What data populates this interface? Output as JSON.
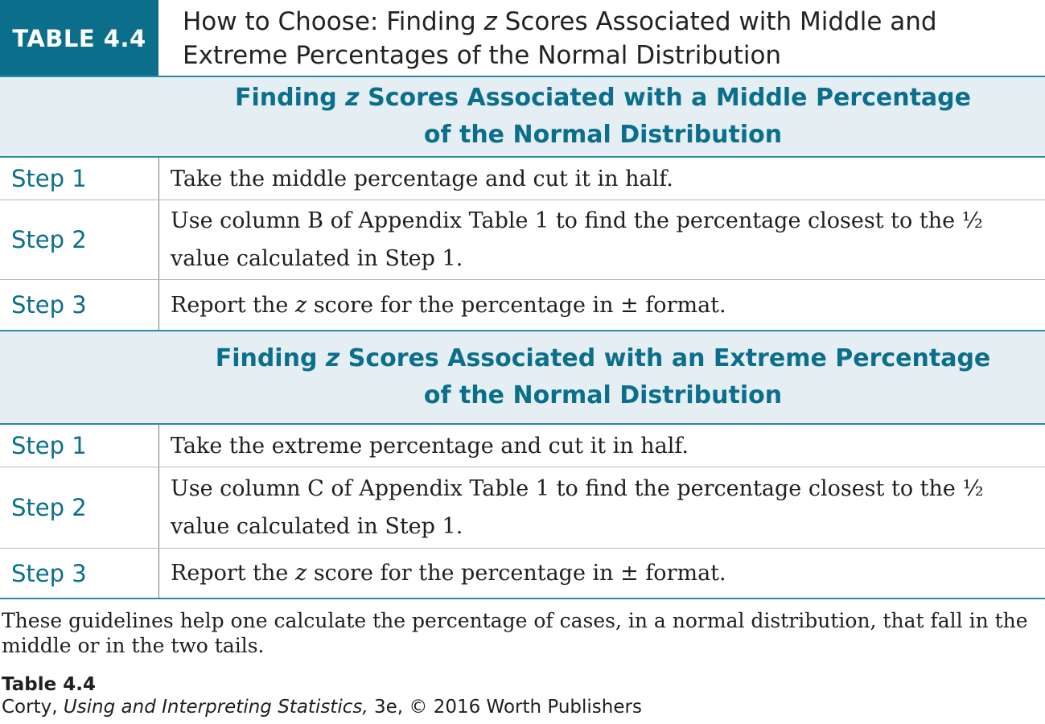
{
  "table": {
    "badge": "TABLE 4.4",
    "title_prefix": "How to Choose: Finding ",
    "title_z": "z",
    "title_suffix_line1": " Scores Associated with Middle and",
    "title_line2": "Extreme Percentages of the Normal Distribution",
    "sections": [
      {
        "heading_prefix": "Finding ",
        "heading_z": "z",
        "heading_suffix": " Scores Associated with a Middle Percentage",
        "heading_line2": "of the Normal Distribution",
        "steps": [
          {
            "label": "Step 1",
            "text": "Take the middle percentage and cut it in half."
          },
          {
            "label": "Step 2",
            "text_line1": "Use column B of Appendix Table 1 to find the percentage closest to the ½",
            "text_line2": "value calculated in Step 1."
          },
          {
            "label": "Step 3",
            "text_prefix": "Report the ",
            "text_z": "z",
            "text_suffix": " score for the percentage in ± format."
          }
        ]
      },
      {
        "heading_prefix": "Finding ",
        "heading_z": "z",
        "heading_suffix": " Scores Associated with an Extreme Percentage",
        "heading_line2": "of the Normal Distribution",
        "steps": [
          {
            "label": "Step 1",
            "text": "Take the extreme percentage and cut it in half."
          },
          {
            "label": "Step 2",
            "text_line1": "Use column C of Appendix Table 1 to find the percentage closest to the ½",
            "text_line2": "value calculated in Step 1."
          },
          {
            "label": "Step 3",
            "text_prefix": "Report the ",
            "text_z": "z",
            "text_suffix": " score for the percentage in ± format."
          }
        ]
      }
    ]
  },
  "caption": {
    "line1": "These guidelines help one calculate the percentage of cases, in a normal distribution, that fall in the",
    "line2": "middle or in the two tails."
  },
  "source": {
    "title": "Table 4.4",
    "author": "Corty, ",
    "book": "Using and Interpreting Statistics,",
    "rest": " 3e, © 2016 Worth Publishers"
  },
  "colors": {
    "accent": "#0b6f8c",
    "section_bg": "#e4eef3"
  }
}
